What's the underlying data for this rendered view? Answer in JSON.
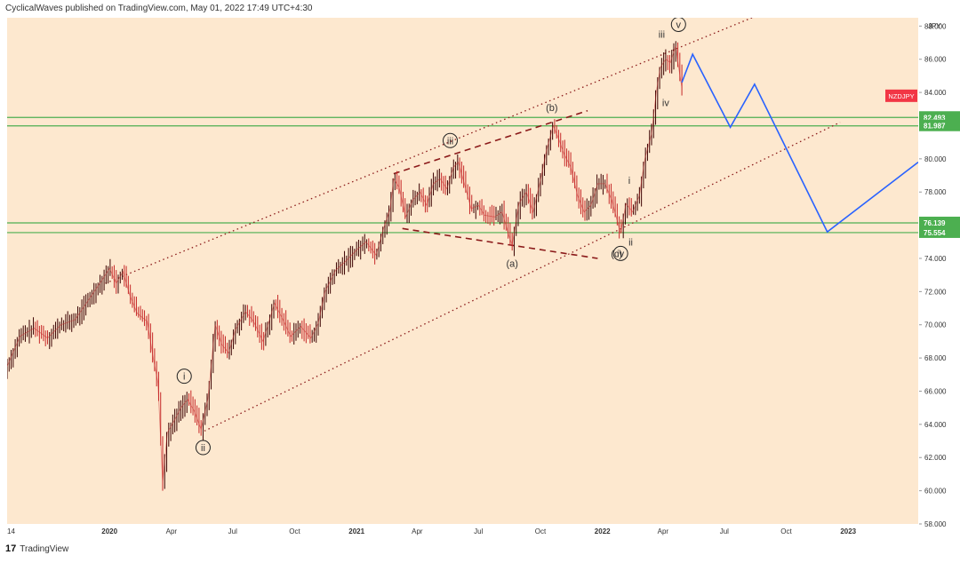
{
  "header": {
    "text": "CyclicalWaves published on TradingView.com, May 01, 2022 17:49 UTC+4:30"
  },
  "footer": {
    "brand": "TradingView"
  },
  "chart_data": {
    "type": "line",
    "title": "",
    "symbol": "NZDJPY",
    "currency_label": "JPY",
    "ylim": [
      58,
      88.5
    ],
    "y_ticks": [
      58,
      60,
      62,
      64,
      66,
      68,
      70,
      72,
      74,
      76,
      78,
      80,
      82,
      84,
      86,
      88
    ],
    "y_tick_labels": [
      "58.000",
      "60.000",
      "62.000",
      "64.000",
      "66.000",
      "68.000",
      "70.000",
      "72.000",
      "74.000",
      "76.000",
      "78.000",
      "80.000",
      "82.000",
      "84.000",
      "86.000",
      "88.000"
    ],
    "x_range": [
      "2019-08-01",
      "2023-04-15"
    ],
    "x_ticks": [
      {
        "date": "2019-08-01",
        "label": "14"
      },
      {
        "date": "2019-12-31",
        "label": "2020"
      },
      {
        "date": "2020-04-01",
        "label": "Apr"
      },
      {
        "date": "2020-07-01",
        "label": "Jul"
      },
      {
        "date": "2020-10-01",
        "label": "Oct"
      },
      {
        "date": "2021-01-01",
        "label": "2021"
      },
      {
        "date": "2021-04-01",
        "label": "Apr"
      },
      {
        "date": "2021-07-01",
        "label": "Jul"
      },
      {
        "date": "2021-10-01",
        "label": "Oct"
      },
      {
        "date": "2022-01-01",
        "label": "2022"
      },
      {
        "date": "2022-04-01",
        "label": "Apr"
      },
      {
        "date": "2022-07-01",
        "label": "Jul"
      },
      {
        "date": "2022-10-01",
        "label": "Oct"
      },
      {
        "date": "2023-01-01",
        "label": "2023"
      }
    ],
    "price_series": {
      "name": "NZDJPY",
      "points": [
        [
          "2019-08-01",
          67.5
        ],
        [
          "2019-08-20",
          69.3
        ],
        [
          "2019-09-10",
          69.8
        ],
        [
          "2019-09-30",
          69.2
        ],
        [
          "2019-10-20",
          70.0
        ],
        [
          "2019-11-10",
          70.3
        ],
        [
          "2019-11-30",
          71.5
        ],
        [
          "2019-12-20",
          72.7
        ],
        [
          "2019-12-31",
          73.4
        ],
        [
          "2020-01-10",
          72.5
        ],
        [
          "2020-01-20",
          73.2
        ],
        [
          "2020-01-30",
          71.8
        ],
        [
          "2020-02-10",
          70.7
        ],
        [
          "2020-02-25",
          70.2
        ],
        [
          "2020-03-05",
          68.0
        ],
        [
          "2020-03-12",
          66.5
        ],
        [
          "2020-03-19",
          60.5
        ],
        [
          "2020-03-26",
          63.5
        ],
        [
          "2020-04-05",
          64.2
        ],
        [
          "2020-04-15",
          65.0
        ],
        [
          "2020-04-25",
          65.5
        ],
        [
          "2020-05-05",
          64.8
        ],
        [
          "2020-05-15",
          63.7
        ],
        [
          "2020-05-25",
          65.5
        ],
        [
          "2020-06-05",
          70.0
        ],
        [
          "2020-06-15",
          68.8
        ],
        [
          "2020-06-25",
          68.3
        ],
        [
          "2020-07-05",
          69.7
        ],
        [
          "2020-07-20",
          70.8
        ],
        [
          "2020-08-01",
          70.2
        ],
        [
          "2020-08-15",
          69.0
        ],
        [
          "2020-09-01",
          71.3
        ],
        [
          "2020-09-15",
          70.2
        ],
        [
          "2020-09-25",
          69.3
        ],
        [
          "2020-10-10",
          69.9
        ],
        [
          "2020-10-25",
          69.2
        ],
        [
          "2020-11-05",
          70.1
        ],
        [
          "2020-11-15",
          72.0
        ],
        [
          "2020-12-01",
          73.3
        ],
        [
          "2020-12-15",
          73.8
        ],
        [
          "2021-01-01",
          74.5
        ],
        [
          "2021-01-15",
          75.0
        ],
        [
          "2021-01-30",
          74.2
        ],
        [
          "2021-02-10",
          75.8
        ],
        [
          "2021-02-20",
          77.0
        ],
        [
          "2021-02-25",
          78.8
        ],
        [
          "2021-03-05",
          78.3
        ],
        [
          "2021-03-15",
          76.5
        ],
        [
          "2021-03-25",
          77.5
        ],
        [
          "2021-04-05",
          78.0
        ],
        [
          "2021-04-15",
          77.2
        ],
        [
          "2021-04-25",
          78.5
        ],
        [
          "2021-05-05",
          78.8
        ],
        [
          "2021-05-15",
          78.2
        ],
        [
          "2021-05-25",
          79.5
        ],
        [
          "2021-06-01",
          79.8
        ],
        [
          "2021-06-10",
          78.5
        ],
        [
          "2021-06-20",
          77.0
        ],
        [
          "2021-07-01",
          77.2
        ],
        [
          "2021-07-10",
          76.6
        ],
        [
          "2021-07-25",
          76.5
        ],
        [
          "2021-08-05",
          76.8
        ],
        [
          "2021-08-15",
          75.4
        ],
        [
          "2021-08-20",
          74.8
        ],
        [
          "2021-08-30",
          77.3
        ],
        [
          "2021-09-10",
          78.0
        ],
        [
          "2021-09-20",
          76.8
        ],
        [
          "2021-09-30",
          78.5
        ],
        [
          "2021-10-10",
          80.5
        ],
        [
          "2021-10-20",
          82.0
        ],
        [
          "2021-10-28",
          81.2
        ],
        [
          "2021-11-05",
          80.3
        ],
        [
          "2021-11-15",
          79.5
        ],
        [
          "2021-11-25",
          77.8
        ],
        [
          "2021-12-05",
          76.8
        ],
        [
          "2021-12-15",
          77.2
        ],
        [
          "2021-12-25",
          78.5
        ],
        [
          "2022-01-05",
          78.5
        ],
        [
          "2022-01-15",
          77.5
        ],
        [
          "2022-01-28",
          75.5
        ],
        [
          "2022-02-05",
          77.3
        ],
        [
          "2022-02-15",
          76.8
        ],
        [
          "2022-02-25",
          77.8
        ],
        [
          "2022-03-05",
          80.0
        ],
        [
          "2022-03-15",
          81.5
        ],
        [
          "2022-03-22",
          84.0
        ],
        [
          "2022-03-28",
          85.5
        ],
        [
          "2022-04-05",
          86.0
        ],
        [
          "2022-04-12",
          85.8
        ],
        [
          "2022-04-20",
          86.8
        ],
        [
          "2022-04-25",
          85.3
        ],
        [
          "2022-04-29",
          84.3
        ]
      ]
    },
    "projection": {
      "color": "#2962ff",
      "points": [
        [
          "2022-04-29",
          84.6
        ],
        [
          "2022-05-15",
          86.3
        ],
        [
          "2022-07-10",
          81.9
        ],
        [
          "2022-08-15",
          84.5
        ],
        [
          "2022-12-01",
          75.6
        ],
        [
          "2023-04-15",
          79.8
        ]
      ]
    },
    "horizontal_levels": [
      {
        "value": 82.493,
        "label": "82.493"
      },
      {
        "value": 81.987,
        "label": "81.987"
      },
      {
        "value": 76.139,
        "label": "76.139"
      },
      {
        "value": 75.554,
        "label": "75.554"
      }
    ],
    "trend_lines": [
      {
        "style": "dotted",
        "from": [
          "2020-05-20",
          63.6
        ],
        "to": [
          "2022-12-20",
          82.2
        ]
      },
      {
        "style": "dotted",
        "from": [
          "2019-12-25",
          72.5
        ],
        "to": [
          "2022-09-10",
          89.0
        ]
      },
      {
        "style": "dashed",
        "from": [
          "2021-02-25",
          79.1
        ],
        "to": [
          "2021-12-10",
          82.9
        ]
      },
      {
        "style": "dashed",
        "from": [
          "2021-03-10",
          75.8
        ],
        "to": [
          "2021-12-25",
          74.0
        ]
      }
    ],
    "wave_labels": [
      {
        "text": "i",
        "date": "2020-04-20",
        "value": 66.9,
        "circled": true
      },
      {
        "text": "ii",
        "date": "2020-05-18",
        "value": 62.6,
        "circled": true
      },
      {
        "text": "iii",
        "date": "2021-05-20",
        "value": 81.1,
        "circled": true
      },
      {
        "text": "(a)",
        "date": "2021-08-20",
        "value": 73.7,
        "circled": false
      },
      {
        "text": "(b)",
        "date": "2021-10-18",
        "value": 83.1,
        "circled": false
      },
      {
        "text": "(c)",
        "date": "2022-01-22",
        "value": 74.3,
        "circled": false
      },
      {
        "text": "iv",
        "date": "2022-01-28",
        "value": 74.3,
        "circled": true
      },
      {
        "text": "i",
        "date": "2022-02-10",
        "value": 78.7,
        "circled": false
      },
      {
        "text": "ii",
        "date": "2022-02-12",
        "value": 75.0,
        "circled": false
      },
      {
        "text": "iii",
        "date": "2022-03-30",
        "value": 87.5,
        "circled": false
      },
      {
        "text": "iv",
        "date": "2022-04-05",
        "value": 83.4,
        "circled": false
      },
      {
        "text": "v",
        "date": "2022-04-24",
        "value": 88.1,
        "circled": true
      }
    ],
    "colors": {
      "background": "#fde8cf",
      "candles": "#c62828",
      "horizontal_levels": "#4caf50",
      "trend_lines": "#8b1a1a",
      "symbol_badge": "#f23645"
    }
  }
}
